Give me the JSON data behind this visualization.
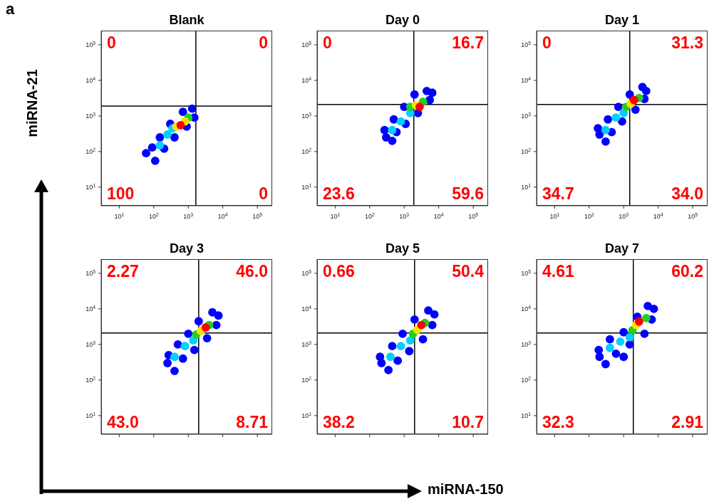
{
  "chart_data": [
    {
      "type": "scatter",
      "title": "Blank",
      "ylabel": "miRNA-21",
      "log": "xy",
      "marker": "circle",
      "xlim": [
        3,
        270000
      ],
      "ylim": [
        3,
        250000
      ],
      "xticks": [
        {
          "value": 10,
          "label": "10$^{1}$"
        },
        {
          "value": 100,
          "label": "10$^{2}$"
        },
        {
          "value": 1000,
          "label": "10$^{3}$"
        },
        {
          "value": 10000,
          "label": "10$^{4}$"
        },
        {
          "value": 100000,
          "label": "10$^{5}$"
        }
      ],
      "yticks": [
        {
          "value": 10,
          "label": "10$^{1}$"
        },
        {
          "value": 100,
          "label": "10$^{2}$"
        },
        {
          "value": 1000,
          "label": "10$^{3}$"
        },
        {
          "value": 10000,
          "label": "10$^{4}$"
        },
        {
          "value": 100000,
          "label": "10$^{5}$"
        }
      ],
      "ref_lines": [
        {
          "axis": "x",
          "value": 1660,
          "color": "#000000"
        },
        {
          "axis": "y",
          "value": 1900,
          "color": "#000000"
        }
      ],
      "x": [
        60,
        110,
        90,
        200,
        150,
        400,
        300,
        900,
        700,
        1500,
        1300,
        150,
        250,
        1000,
        350,
        450,
        800,
        600
      ],
      "values": [
        90,
        55,
        130,
        120,
        250,
        250,
        600,
        500,
        1300,
        900,
        1600,
        150,
        300,
        900,
        450,
        500,
        700,
        550
      ],
      "colors": [
        "#0000ff",
        "#0000ff",
        "#0000ff",
        "#0000ff",
        "#0000ff",
        "#0000ff",
        "#0000ff",
        "#0000ff",
        "#0000ff",
        "#0000ff",
        "#0000ff",
        "#00d0ff",
        "#00d0ff",
        "#20d020",
        "#00d0ff",
        "#ffe000",
        "#ffe000",
        "#ff0000"
      ],
      "annotations": [
        "0",
        "0",
        "100",
        "0",
        "a"
      ]
    },
    {
      "type": "scatter",
      "title": "Day 0",
      "log": "xy",
      "marker": "circle",
      "xlim": [
        3,
        270000
      ],
      "ylim": [
        3,
        250000
      ],
      "xticks": [
        {
          "value": 10,
          "label": "10$^{1}$"
        },
        {
          "value": 100,
          "label": "10$^{2}$"
        },
        {
          "value": 1000,
          "label": "10$^{3}$"
        },
        {
          "value": 10000,
          "label": "10$^{4}$"
        },
        {
          "value": 100000,
          "label": "10$^{5}$"
        }
      ],
      "yticks": [
        {
          "value": 10,
          "label": "10$^{1}$"
        },
        {
          "value": 100,
          "label": "10$^{2}$"
        },
        {
          "value": 1000,
          "label": "10$^{3}$"
        },
        {
          "value": 10000,
          "label": "10$^{4}$"
        },
        {
          "value": 100000,
          "label": "10$^{5}$"
        }
      ],
      "ref_lines": [
        {
          "axis": "x",
          "value": 1900,
          "color": "#000000"
        },
        {
          "axis": "y",
          "value": 2100,
          "color": "#000000"
        }
      ],
      "x": [
        300,
        450,
        270,
        600,
        500,
        1100,
        1000,
        2500,
        2000,
        5500,
        4500,
        6500,
        450,
        800,
        1500,
        1500,
        3500,
        2200,
        2800
      ],
      "values": [
        250,
        200,
        400,
        350,
        800,
        600,
        1800,
        1200,
        4000,
        2800,
        5000,
        4500,
        400,
        700,
        1200,
        1800,
        2500,
        2000,
        1800
      ],
      "colors": [
        "#0000ff",
        "#0000ff",
        "#0000ff",
        "#0000ff",
        "#0000ff",
        "#0000ff",
        "#0000ff",
        "#0000ff",
        "#0000ff",
        "#0000ff",
        "#0000ff",
        "#0000ff",
        "#00d0ff",
        "#00d0ff",
        "#00d0ff",
        "#20d020",
        "#20d020",
        "#ffe000",
        "#ff0000"
      ],
      "annotations": [
        "0",
        "16.7",
        "23.6",
        "59.6"
      ]
    },
    {
      "type": "scatter",
      "title": "Day 1",
      "log": "xy",
      "marker": "circle",
      "xlim": [
        3,
        270000
      ],
      "ylim": [
        3,
        250000
      ],
      "xticks": [
        {
          "value": 10,
          "label": "10$^{1}$"
        },
        {
          "value": 100,
          "label": "10$^{2}$"
        },
        {
          "value": 1000,
          "label": "10$^{3}$"
        },
        {
          "value": 10000,
          "label": "10$^{4}$"
        },
        {
          "value": 100000,
          "label": "10$^{5}$"
        }
      ],
      "yticks": [
        {
          "value": 10,
          "label": "10$^{1}$"
        },
        {
          "value": 100,
          "label": "10$^{2}$"
        },
        {
          "value": 1000,
          "label": "10$^{3}$"
        },
        {
          "value": 10000,
          "label": "10$^{4}$"
        },
        {
          "value": 100000,
          "label": "10$^{5}$"
        }
      ],
      "ref_lines": [
        {
          "axis": "x",
          "value": 1500,
          "color": "#000000"
        },
        {
          "axis": "y",
          "value": 2100,
          "color": "#000000"
        }
      ],
      "x": [
        200,
        300,
        180,
        450,
        350,
        900,
        700,
        2200,
        1500,
        4000,
        3500,
        4500,
        300,
        600,
        1000,
        1200,
        2800,
        1600,
        2000
      ],
      "values": [
        300,
        190,
        450,
        350,
        800,
        700,
        1800,
        1500,
        4000,
        3000,
        6500,
        5000,
        400,
        900,
        1200,
        1800,
        3200,
        2200,
        2800
      ],
      "colors": [
        "#0000ff",
        "#0000ff",
        "#0000ff",
        "#0000ff",
        "#0000ff",
        "#0000ff",
        "#0000ff",
        "#0000ff",
        "#0000ff",
        "#0000ff",
        "#0000ff",
        "#0000ff",
        "#00d0ff",
        "#00d0ff",
        "#00d0ff",
        "#20d020",
        "#20d020",
        "#ffe000",
        "#ff0000"
      ],
      "annotations": [
        "0",
        "31.3",
        "34.7",
        "34.0"
      ]
    },
    {
      "type": "scatter",
      "title": "Day 3",
      "log": "xy",
      "marker": "circle",
      "tick_labels": "y",
      "xlim": [
        3,
        270000
      ],
      "ylim": [
        3,
        250000
      ],
      "xticks": [
        {
          "value": 10,
          "label": null
        },
        {
          "value": 100,
          "label": null
        },
        {
          "value": 1000,
          "label": null
        },
        {
          "value": 10000,
          "label": null
        },
        {
          "value": 100000,
          "label": null
        }
      ],
      "yticks": [
        {
          "value": 10,
          "label": "10$^{1}$"
        },
        {
          "value": 100,
          "label": "10$^{2}$"
        },
        {
          "value": 1000,
          "label": "10$^{3}$"
        },
        {
          "value": 10000,
          "label": "10$^{4}$"
        },
        {
          "value": 100000,
          "label": "10$^{5}$"
        }
      ],
      "ref_lines": [
        {
          "axis": "x",
          "value": 2000,
          "color": "#000000"
        },
        {
          "axis": "y",
          "value": 2100,
          "color": "#000000"
        }
      ],
      "x": [
        250,
        400,
        270,
        700,
        500,
        1500,
        1000,
        3500,
        2000,
        6500,
        5000,
        7500,
        400,
        800,
        1400,
        1700,
        4000,
        2300,
        3200
      ],
      "values": [
        300,
        180,
        500,
        400,
        1000,
        700,
        2000,
        1500,
        4500,
        3500,
        8000,
        6500,
        450,
        900,
        1300,
        1900,
        3500,
        2400,
        3000
      ],
      "colors": [
        "#0000ff",
        "#0000ff",
        "#0000ff",
        "#0000ff",
        "#0000ff",
        "#0000ff",
        "#0000ff",
        "#0000ff",
        "#0000ff",
        "#0000ff",
        "#0000ff",
        "#0000ff",
        "#00d0ff",
        "#00d0ff",
        "#00d0ff",
        "#20d020",
        "#20d020",
        "#ffe000",
        "#ff0000"
      ],
      "annotations": [
        "2.27",
        "46.0",
        "43.0",
        "8.71"
      ]
    },
    {
      "type": "scatter",
      "title": "Day 5",
      "xlabel": "miRNA-150",
      "log": "xy",
      "marker": "circle",
      "tick_labels": "y",
      "xlim": [
        3,
        270000
      ],
      "ylim": [
        3,
        250000
      ],
      "xticks": [
        {
          "value": 10,
          "label": null
        },
        {
          "value": 100,
          "label": null
        },
        {
          "value": 1000,
          "label": null
        },
        {
          "value": 10000,
          "label": null
        },
        {
          "value": 100000,
          "label": null
        }
      ],
      "yticks": [
        {
          "value": 10,
          "label": "10$^{1}$"
        },
        {
          "value": 100,
          "label": "10$^{2}$"
        },
        {
          "value": 1000,
          "label": "10$^{3}$"
        },
        {
          "value": 10000,
          "label": "10$^{4}$"
        },
        {
          "value": 100000,
          "label": "10$^{5}$"
        }
      ],
      "ref_lines": [
        {
          "axis": "x",
          "value": 2000,
          "color": "#000000"
        },
        {
          "axis": "y",
          "value": 2100,
          "color": "#000000"
        }
      ],
      "x": [
        220,
        350,
        200,
        650,
        450,
        1400,
        900,
        3500,
        2000,
        6500,
        5000,
        7500,
        400,
        800,
        1500,
        1800,
        4000,
        2400,
        3150
      ],
      "values": [
        300,
        190,
        450,
        350,
        900,
        650,
        2000,
        1400,
        5000,
        3500,
        9000,
        7000,
        450,
        900,
        1300,
        2000,
        4000,
        2600,
        3500
      ],
      "colors": [
        "#0000ff",
        "#0000ff",
        "#0000ff",
        "#0000ff",
        "#0000ff",
        "#0000ff",
        "#0000ff",
        "#0000ff",
        "#0000ff",
        "#0000ff",
        "#0000ff",
        "#0000ff",
        "#00d0ff",
        "#00d0ff",
        "#00d0ff",
        "#20d020",
        "#20d020",
        "#ffe000",
        "#ff0000"
      ],
      "annotations": [
        "0.66",
        "50.4",
        "38.2",
        "10.7"
      ]
    },
    {
      "type": "scatter",
      "title": "Day 7",
      "log": "xy",
      "marker": "circle",
      "tick_labels": "y",
      "xlim": [
        3,
        270000
      ],
      "ylim": [
        3,
        250000
      ],
      "xticks": [
        {
          "value": 10,
          "label": null
        },
        {
          "value": 100,
          "label": null
        },
        {
          "value": 1000,
          "label": null
        },
        {
          "value": 10000,
          "label": null
        },
        {
          "value": 100000,
          "label": null
        }
      ],
      "yticks": [
        {
          "value": 10,
          "label": "10$^{1}$"
        },
        {
          "value": 100,
          "label": "10$^{2}$"
        },
        {
          "value": 1000,
          "label": "10$^{3}$"
        },
        {
          "value": 10000,
          "label": "10$^{4}$"
        },
        {
          "value": 100000,
          "label": "10$^{5}$"
        }
      ],
      "ref_lines": [
        {
          "axis": "x",
          "value": 1900,
          "color": "#000000"
        },
        {
          "axis": "y",
          "value": 2100,
          "color": "#000000"
        }
      ],
      "x": [
        200,
        300,
        190,
        1000,
        600,
        400,
        1500,
        1000,
        4000,
        2500,
        6500,
        5000,
        7500,
        400,
        800,
        1500,
        1800,
        4500,
        2300,
        2800
      ],
      "values": [
        450,
        280,
        700,
        450,
        550,
        1400,
        1000,
        2200,
        2000,
        6000,
        5000,
        12000,
        10000,
        800,
        1200,
        1600,
        2500,
        5500,
        3500,
        4400
      ],
      "colors": [
        "#0000ff",
        "#0000ff",
        "#0000ff",
        "#0000ff",
        "#0000ff",
        "#0000ff",
        "#0000ff",
        "#0000ff",
        "#0000ff",
        "#0000ff",
        "#0000ff",
        "#0000ff",
        "#0000ff",
        "#00d0ff",
        "#00d0ff",
        "#00d0ff",
        "#20d020",
        "#20d020",
        "#ffe000",
        "#ff0000"
      ],
      "annotations": [
        "4.61",
        "60.2",
        "32.3",
        "2.91"
      ]
    }
  ]
}
